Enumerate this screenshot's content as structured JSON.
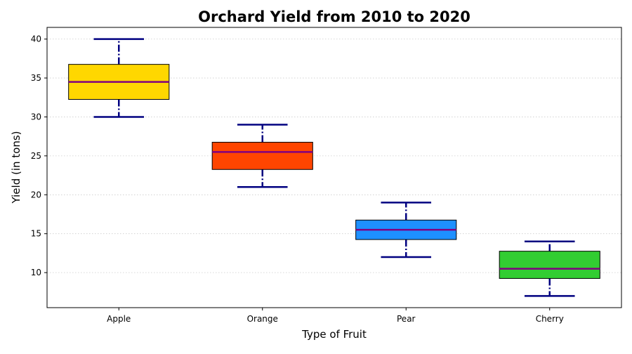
{
  "chart_data": {
    "type": "box",
    "title": "Orchard Yield from 2010 to 2020",
    "xlabel": "Type of Fruit",
    "ylabel": "Yield (in tons)",
    "ylim": [
      5.5,
      41.5
    ],
    "yticks": [
      10,
      15,
      20,
      25,
      30,
      35,
      40
    ],
    "grid": "y-dotted",
    "categories": [
      "Apple",
      "Orange",
      "Pear",
      "Cherry"
    ],
    "boxes": [
      {
        "category": "Apple",
        "min": 30,
        "q1": 32.25,
        "median": 34.5,
        "q3": 36.75,
        "max": 40,
        "color": "#FFD700"
      },
      {
        "category": "Orange",
        "min": 21,
        "q1": 23.25,
        "median": 25.5,
        "q3": 26.75,
        "max": 29,
        "color": "#FF4500"
      },
      {
        "category": "Pear",
        "min": 12,
        "q1": 14.25,
        "median": 15.5,
        "q3": 16.75,
        "max": 19,
        "color": "#1E90FF"
      },
      {
        "category": "Cherry",
        "min": 7,
        "q1": 9.25,
        "median": 10.5,
        "q3": 12.75,
        "max": 14,
        "color": "#32CD32"
      }
    ],
    "whisker_color": "#000080",
    "median_color": "#800080",
    "box_edge_color": "#000000"
  }
}
